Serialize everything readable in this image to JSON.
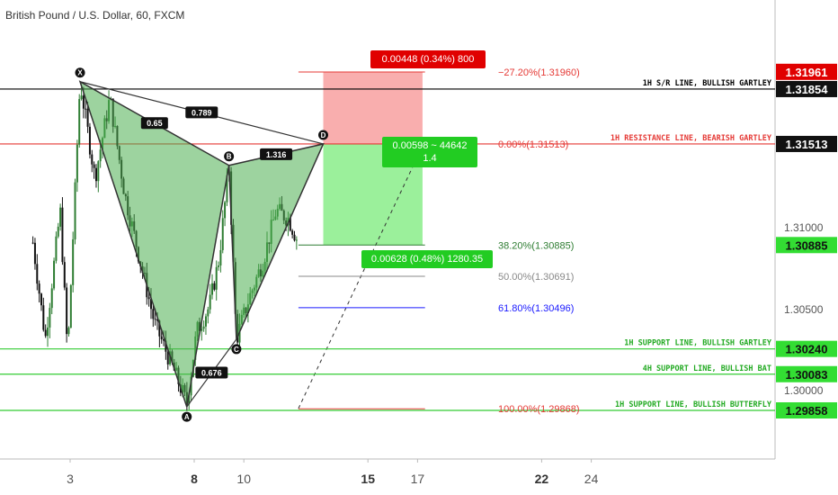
{
  "title": "British Pound / U.S. Dollar, 60, FXCM",
  "colors": {
    "up": "#2e7d32",
    "down": "#111111",
    "pattern_fill": "#4caf50",
    "pattern_stroke": "#333333",
    "support": "#33cc33",
    "resistance": "#e53935",
    "sr": "#000000",
    "stop": "#f8a5a5",
    "target": "#90ee90",
    "blue_fib": "#1a1aff",
    "gray_fib": "#888888"
  },
  "chart_data": {
    "type": "candlestick",
    "x_tick_labels": [
      {
        "label": "3",
        "bold": false
      },
      {
        "label": "8",
        "bold": true
      },
      {
        "label": "10",
        "bold": false
      },
      {
        "label": "15",
        "bold": true
      },
      {
        "label": "17",
        "bold": false
      },
      {
        "label": "22",
        "bold": true
      },
      {
        "label": "24",
        "bold": false
      }
    ],
    "y_tick_labels": [
      "1.31000",
      "1.30500",
      "1.30000"
    ],
    "ylim": [
      1.295,
      1.3235
    ],
    "pattern": {
      "name": "Gartley",
      "points": [
        {
          "label": "X",
          "day": 3.4,
          "price": 1.319
        },
        {
          "label": "A",
          "day": 7.7,
          "price": 1.2988
        },
        {
          "label": "B",
          "day": 9.4,
          "price": 1.3138
        },
        {
          "label": "C",
          "day": 9.7,
          "price": 1.303
        },
        {
          "label": "D",
          "day": 13.2,
          "price": 1.31513
        }
      ],
      "ratios": [
        {
          "label": "0.65",
          "from": "X",
          "to": "B"
        },
        {
          "label": "0.789",
          "from": "X",
          "to": "D"
        },
        {
          "label": "1.316",
          "from": "B",
          "to": "D"
        },
        {
          "label": "0.676",
          "from": "A",
          "to": "C"
        }
      ]
    },
    "horizontal_lines": [
      {
        "label": "1H S/R LINE, BULLISH GARTLEY",
        "price": 1.31854,
        "kind": "sr"
      },
      {
        "label": "1H RESISTANCE LINE, BEARISH GARTLEY",
        "price": 1.31513,
        "kind": "resistance"
      },
      {
        "label": "1H SUPPORT LINE, BULLISH GARTLEY",
        "price": 1.3024,
        "kind": "support"
      },
      {
        "label": "4H SUPPORT LINE, BULLISH BAT",
        "price": 1.30083,
        "kind": "support"
      },
      {
        "label": "1H SUPPORT LINE, BULLISH BUTTERFLY",
        "price": 1.29858,
        "kind": "support"
      }
    ],
    "fib_levels": [
      {
        "label": "−27.20%(1.31960)",
        "price": 1.3196,
        "kind": "resistance"
      },
      {
        "label": "0.00%(1.31513)",
        "price": 1.31513,
        "kind": "resistance"
      },
      {
        "label": "38.20%(1.30885)",
        "price": 1.30885,
        "kind": "fib_green"
      },
      {
        "label": "50.00%(1.30691)",
        "price": 1.30691,
        "kind": "gray"
      },
      {
        "label": "61.80%(1.30496)",
        "price": 1.30496,
        "kind": "blue"
      },
      {
        "label": "100.00%(1.29868)",
        "price": 1.29868,
        "kind": "resistance"
      }
    ],
    "position": {
      "stop_label": "0.00448 (0.34%) 800",
      "entry_label_line1": "0.00598 ~ 44642",
      "entry_label_line2": "1.4",
      "target_label": "0.00628 (0.48%) 1280.35",
      "stop_price": 1.3196,
      "entry_price": 1.31513,
      "target_price": 1.30885
    },
    "price_tags": [
      {
        "label": "1.31961",
        "price": 1.31961,
        "kind": "resistance"
      },
      {
        "label": "1.31854",
        "price": 1.31854,
        "kind": "sr"
      },
      {
        "label": "1.31513",
        "price": 1.31513,
        "kind": "sr"
      },
      {
        "label": "1.30885",
        "price": 1.30885,
        "kind": "support"
      },
      {
        "label": "1.30240",
        "price": 1.3024,
        "kind": "support"
      },
      {
        "label": "1.30083",
        "price": 1.30083,
        "kind": "support"
      },
      {
        "label": "1.29858",
        "price": 1.29858,
        "kind": "support"
      }
    ]
  }
}
